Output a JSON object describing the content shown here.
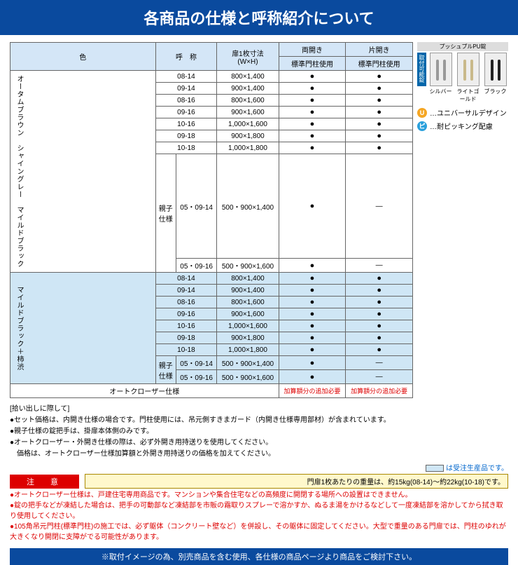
{
  "title": "各商品の仕様と呼称紹介について",
  "table": {
    "head": {
      "color": "色",
      "name": "呼　称",
      "dim": "扉1枚寸法\n(W×H)",
      "double": "両開き",
      "single": "片開き",
      "std": "標準門柱使用"
    },
    "group1_label": "オータムブラウン　シャイングレー　マイルドブラック",
    "group2_label": "マイルドブラック＋柿渋",
    "oyako": "親子\n仕様",
    "rows1": [
      {
        "n": "08-14",
        "d": "800×1,400",
        "a": true,
        "b": true
      },
      {
        "n": "09-14",
        "d": "900×1,400",
        "a": true,
        "b": true
      },
      {
        "n": "08-16",
        "d": "800×1,600",
        "a": true,
        "b": true
      },
      {
        "n": "09-16",
        "d": "900×1,600",
        "a": true,
        "b": true
      },
      {
        "n": "10-16",
        "d": "1,000×1,600",
        "a": true,
        "b": true
      },
      {
        "n": "09-18",
        "d": "900×1,800",
        "a": true,
        "b": true
      },
      {
        "n": "10-18",
        "d": "1,000×1,800",
        "a": true,
        "b": true
      }
    ],
    "oyako1": [
      {
        "n": "05・09-14",
        "d": "500・900×1,400",
        "a": true,
        "b": "dash"
      },
      {
        "n": "05・09-16",
        "d": "500・900×1,600",
        "a": true,
        "b": "dash"
      }
    ],
    "rows2": [
      {
        "n": "08-14",
        "d": "800×1,400",
        "a": true,
        "b": true
      },
      {
        "n": "09-14",
        "d": "900×1,400",
        "a": true,
        "b": true
      },
      {
        "n": "08-16",
        "d": "800×1,600",
        "a": true,
        "b": true
      },
      {
        "n": "09-16",
        "d": "900×1,600",
        "a": true,
        "b": true
      },
      {
        "n": "10-16",
        "d": "1,000×1,600",
        "a": true,
        "b": true
      },
      {
        "n": "09-18",
        "d": "900×1,800",
        "a": true,
        "b": true
      },
      {
        "n": "10-18",
        "d": "1,000×1,800",
        "a": true,
        "b": true
      }
    ],
    "oyako2": [
      {
        "n": "05・09-14",
        "d": "500・900×1,400",
        "a": true,
        "b": "dash"
      },
      {
        "n": "05・09-16",
        "d": "500・900×1,600",
        "a": true,
        "b": "dash"
      }
    ],
    "autocloser": "オートクローザー仕様",
    "surcharge": "加算額分の追加必要"
  },
  "side": {
    "top_label": "プッシュプルPU錠 ",
    "badge": "取付可能錠",
    "handles": [
      {
        "label": "シルバー",
        "color": "#9a9a9a"
      },
      {
        "label": "ライトゴールド",
        "color": "#c9b98a"
      },
      {
        "label": "ブラック",
        "color": "#222"
      }
    ],
    "legend": [
      {
        "mark": "U",
        "bg": "#f5a623",
        "text": "…ユニバーサルデザイン"
      },
      {
        "mark": "ピ",
        "bg": "#2aa0dc",
        "text": "…耐ピッキング配慮"
      }
    ]
  },
  "notes": {
    "title": "[拾い出しに際して]",
    "lines": [
      "●セット価格は、内開き仕様の場合です。門柱使用には、吊元側すきまガード（内開き仕様専用部材）が含まれています。",
      "●親子仕様の錠把手は、掛扉本体側のみです。",
      "●オートクローザー・外開き仕様の際は、必ず外開き用持送りを使用してください。",
      "　価格は、オートクローザー仕様加算額と外開き用持送りの価格を加えてください。"
    ]
  },
  "legend_order": "は受注生産品です。",
  "caution_label": "注　意",
  "weight_note": "門扉1枚あたりの重量は、約15kg(08-14)～約22kg(10-18)です。",
  "caution_lines": [
    "●オートクローザー仕様は、戸建住宅専用商品です。マンションや集合住宅などの高頻度に開閉する場所への設置はできません。",
    "●錠の把手などが凍結した場合は、把手の可動部など凍結部を市販の霜取りスプレーで溶かすか、ぬるま湯をかけるなどして一度凍結部を溶かしてから拭き取り使用してください。",
    "●105角吊元門柱(標準門柱)の施工では、必ず躯体（コンクリート壁など）を併設し、その躯体に固定してください。大型で重量のある門扉では、門柱のゆれが大きくなり開閉に支障がでる可能性があります。"
  ],
  "footer": "※取付イメージの為、別売商品を含む使用、各仕様の商品ページより商品をご検討下さい。",
  "colors": {
    "header_bg": "#0a4a9e",
    "cell_blue": "#cfe6f5",
    "red": "#d00"
  }
}
